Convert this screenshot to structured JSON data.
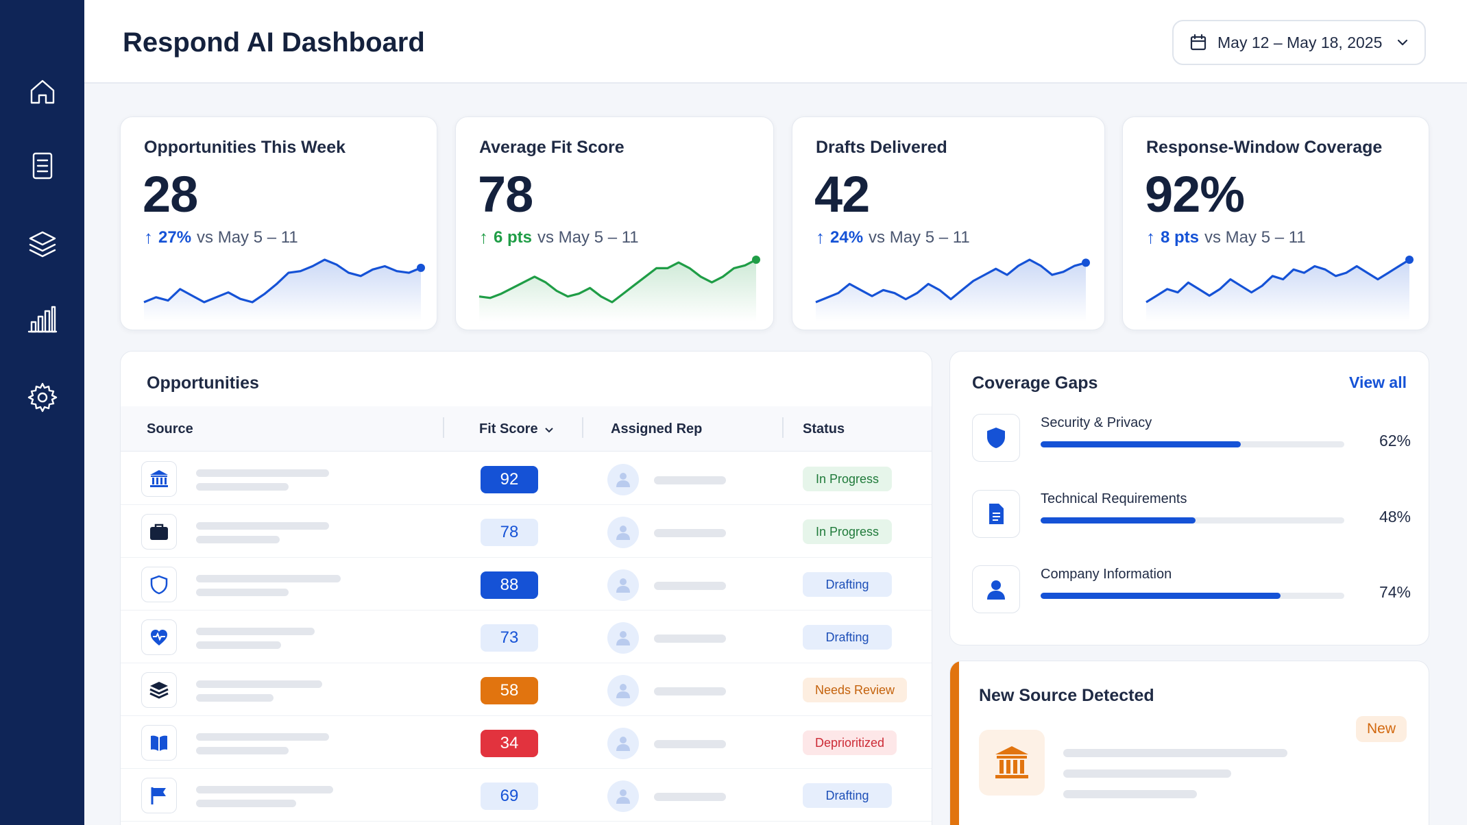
{
  "app": {
    "title": "Respond AI Dashboard"
  },
  "sidebar": {
    "items": [
      {
        "icon": "home-icon"
      },
      {
        "icon": "document-icon"
      },
      {
        "icon": "layers-icon"
      },
      {
        "icon": "bar-chart-icon"
      },
      {
        "icon": "gear-icon"
      }
    ]
  },
  "date_range": {
    "label": "May 12 – May 18, 2025",
    "icon": "calendar-icon"
  },
  "kpis": [
    {
      "title": "Opportunities This Week",
      "value": "28",
      "arrow": "↑",
      "change": "27%",
      "compare": "vs May 5 – 11",
      "color": "#1552d6",
      "trend": [
        12,
        15,
        13,
        20,
        16,
        12,
        15,
        18,
        14,
        12,
        17,
        23,
        30,
        31,
        34,
        38,
        35,
        30,
        28,
        32,
        34,
        31,
        30,
        33
      ]
    },
    {
      "title": "Average Fit Score",
      "value": "78",
      "arrow": "↑",
      "change": "6 pts",
      "compare": "vs May 5 – 11",
      "color": "#1f9d46",
      "trend": [
        14,
        13,
        16,
        20,
        24,
        28,
        24,
        18,
        14,
        16,
        20,
        14,
        10,
        16,
        22,
        28,
        34,
        34,
        38,
        34,
        28,
        24,
        28,
        34,
        36,
        40
      ]
    },
    {
      "title": "Drafts Delivered",
      "value": "42",
      "arrow": "↑",
      "change": "24%",
      "compare": "vs May 5 – 11",
      "color": "#1552d6",
      "trend": [
        12,
        15,
        18,
        24,
        20,
        16,
        20,
        18,
        14,
        18,
        24,
        20,
        14,
        20,
        26,
        30,
        34,
        30,
        36,
        40,
        36,
        30,
        32,
        36,
        38
      ]
    },
    {
      "title": "Response-Window Coverage",
      "value": "92%",
      "arrow": "↑",
      "change": "8 pts",
      "compare": "vs May 5 – 11",
      "color": "#1552d6",
      "trend": [
        12,
        16,
        20,
        18,
        24,
        20,
        16,
        20,
        26,
        22,
        18,
        22,
        28,
        26,
        32,
        30,
        34,
        32,
        28,
        30,
        34,
        30,
        26,
        30,
        34,
        38
      ]
    }
  ],
  "opportunities": {
    "title": "Opportunities",
    "columns": {
      "source": "Source",
      "fit": "Fit Score",
      "rep": "Assigned Rep",
      "status": "Status"
    },
    "rows": [
      {
        "icon": "institution-icon",
        "score": "92",
        "score_style": "dark",
        "status": "In Progress",
        "status_style": "progress",
        "ph": [
          0.72,
          0.5
        ]
      },
      {
        "icon": "briefcase-icon",
        "score": "78",
        "score_style": "light",
        "status": "In Progress",
        "status_style": "progress",
        "ph": [
          0.72,
          0.45
        ]
      },
      {
        "icon": "shield-icon",
        "score": "88",
        "score_style": "dark",
        "status": "Drafting",
        "status_style": "drafting",
        "ph": [
          0.78,
          0.5
        ]
      },
      {
        "icon": "heart-pulse-icon",
        "score": "73",
        "score_style": "light",
        "status": "Drafting",
        "status_style": "drafting",
        "ph": [
          0.64,
          0.46
        ]
      },
      {
        "icon": "layers-icon",
        "score": "58",
        "score_style": "orange",
        "status": "Needs Review",
        "status_style": "review",
        "ph": [
          0.68,
          0.42
        ]
      },
      {
        "icon": "book-icon",
        "score": "34",
        "score_style": "red",
        "status": "Deprioritized",
        "status_style": "deprior",
        "ph": [
          0.72,
          0.5
        ]
      },
      {
        "icon": "flag-icon",
        "score": "69",
        "score_style": "light",
        "status": "Drafting",
        "status_style": "drafting",
        "ph": [
          0.74,
          0.54
        ]
      }
    ]
  },
  "coverage_gaps": {
    "title": "Coverage Gaps",
    "view_all": "View all",
    "items": [
      {
        "icon": "shield-icon",
        "label": "Security & Privacy",
        "pct": "62%",
        "value": 0.66
      },
      {
        "icon": "document-icon",
        "label": "Technical Requirements",
        "pct": "48%",
        "value": 0.51
      },
      {
        "icon": "person-icon",
        "label": "Company Information",
        "pct": "74%",
        "value": 0.79
      }
    ]
  },
  "new_source": {
    "title": "New Source Detected",
    "badge": "New",
    "icon": "institution-icon",
    "accent": "#e1740f"
  }
}
